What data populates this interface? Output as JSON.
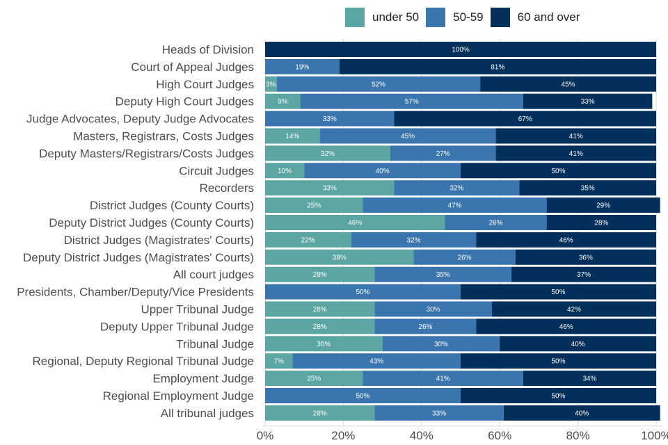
{
  "chart_data": {
    "type": "bar",
    "orientation": "horizontal",
    "stacked": true,
    "title": "",
    "xlabel": "",
    "ylabel": "",
    "xlim": [
      0,
      100
    ],
    "x_ticks": [
      "0%",
      "20%",
      "40%",
      "60%",
      "80%",
      "100%"
    ],
    "x_tick_values": [
      0,
      20,
      40,
      60,
      80,
      100
    ],
    "grid": true,
    "legend_position": "top",
    "categories": [
      "Heads of Division",
      "Court of Appeal Judges",
      "High Court Judges",
      "Deputy High Court Judges",
      "Judge Advocates, Deputy Judge Advocates",
      "Masters, Registrars, Costs Judges",
      "Deputy Masters/Registrars/Costs Judges",
      "Circuit Judges",
      "Recorders",
      "District Judges (County Courts)",
      "Deputy District Judges (County Courts)",
      "District Judges (Magistrates' Courts)",
      "Deputy District Judges (Magistrates' Courts)",
      "All court judges",
      "Presidents, Chamber/Deputy/Vice Presidents",
      "Upper Tribunal Judge",
      "Deputy Upper Tribunal Judge",
      "Tribunal Judge",
      "Regional, Deputy Regional Tribunal Judge",
      "Employment Judge",
      "Regional Employment Judge",
      "All tribunal judges"
    ],
    "series": [
      {
        "name": "under 50",
        "color": "#5ba6a2",
        "values": [
          0,
          0,
          3,
          9,
          0,
          14,
          32,
          10,
          33,
          25,
          46,
          22,
          38,
          28,
          0,
          28,
          28,
          30,
          7,
          25,
          0,
          28
        ]
      },
      {
        "name": "50-59",
        "color": "#3b75ad",
        "values": [
          0,
          19,
          52,
          57,
          33,
          45,
          27,
          40,
          32,
          47,
          26,
          32,
          26,
          35,
          50,
          30,
          26,
          30,
          43,
          41,
          50,
          33
        ]
      },
      {
        "name": "60 and over",
        "color": "#03305a",
        "values": [
          100,
          81,
          45,
          33,
          67,
          41,
          41,
          50,
          35,
          29,
          28,
          46,
          36,
          37,
          50,
          42,
          46,
          40,
          50,
          34,
          50,
          40
        ]
      }
    ],
    "value_suffix": "%"
  }
}
